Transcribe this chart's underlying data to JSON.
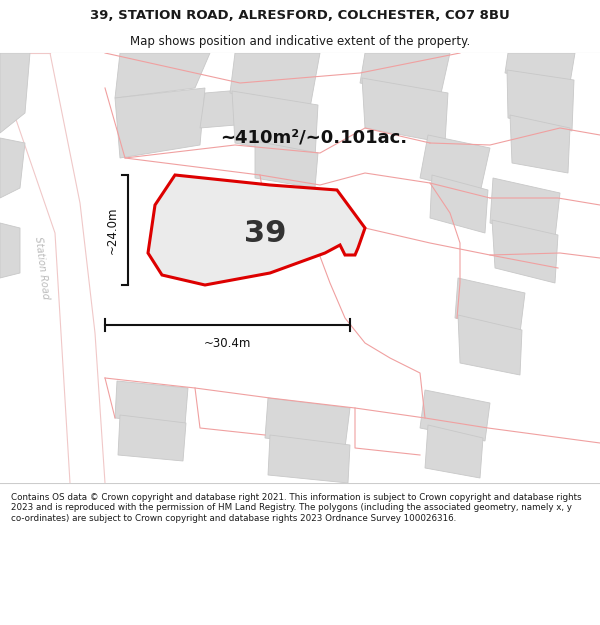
{
  "title_line1": "39, STATION ROAD, ALRESFORD, COLCHESTER, CO7 8BU",
  "title_line2": "Map shows position and indicative extent of the property.",
  "footer_text": "Contains OS data © Crown copyright and database right 2021. This information is subject to Crown copyright and database rights 2023 and is reproduced with the permission of HM Land Registry. The polygons (including the associated geometry, namely x, y co-ordinates) are subject to Crown copyright and database rights 2023 Ordnance Survey 100026316.",
  "area_label": "~410m²/~0.101ac.",
  "width_label": "~30.4m",
  "height_label": "~24.0m",
  "property_number": "39",
  "map_bg": "#ebebeb",
  "road_color": "#ffffff",
  "road_edge": "#f0c8c8",
  "building_color": "#d8d8d8",
  "building_edge": "#c8c8c8",
  "parcel_line_color": "#f0a0a0",
  "property_fill": "#ebebeb",
  "property_edge": "#dd0000",
  "text_color": "#1a1a1a",
  "footer_bg": "#ffffff",
  "title_bg": "#ffffff",
  "dim_color": "#111111",
  "station_road_label_color": "#bbbbbb"
}
